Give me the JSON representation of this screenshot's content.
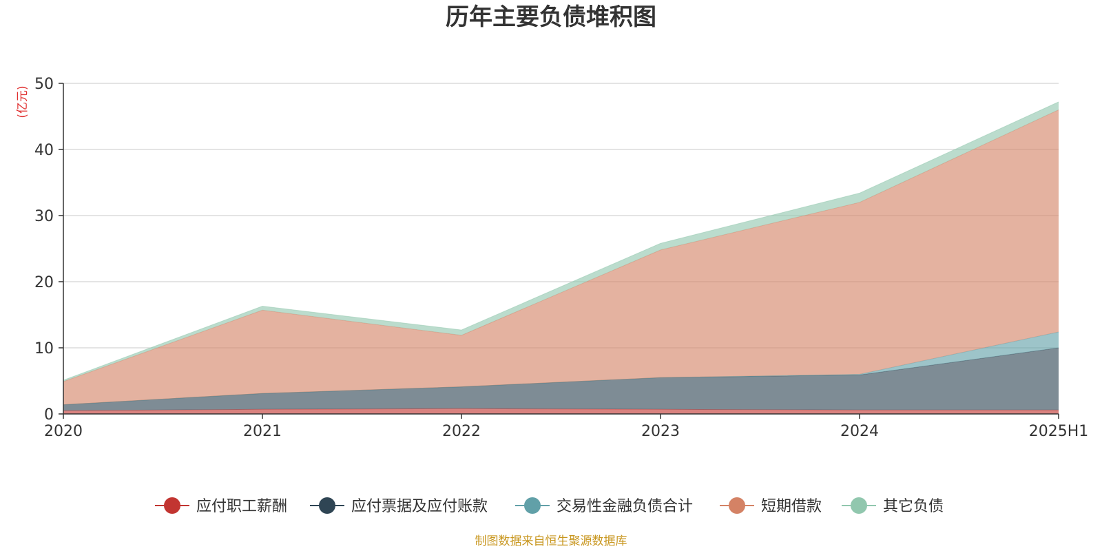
{
  "chart_data": {
    "type": "area",
    "stacked": true,
    "title": "历年主要负债堆积图",
    "unit_label": "(亿元)",
    "categories": [
      "2020",
      "2021",
      "2022",
      "2023",
      "2024",
      "2025H1"
    ],
    "ylim": [
      0,
      50
    ],
    "yticks": [
      0,
      10,
      20,
      30,
      40,
      50
    ],
    "grid": true,
    "legend_position": "bottom",
    "series": [
      {
        "name": "应付职工薪酬",
        "color": "#c23531",
        "values": [
          0.5,
          0.7,
          0.8,
          0.7,
          0.6,
          0.6
        ]
      },
      {
        "name": "应付票据及应付账款",
        "color": "#2f4554",
        "values": [
          0.9,
          2.4,
          3.3,
          4.8,
          5.3,
          9.4
        ]
      },
      {
        "name": "交易性金融负债合计",
        "color": "#61a0a8",
        "values": [
          0,
          0,
          0,
          0,
          0.1,
          2.4
        ]
      },
      {
        "name": "短期借款",
        "color": "#d48265",
        "values": [
          3.5,
          12.6,
          7.8,
          19.3,
          26.0,
          33.6
        ]
      },
      {
        "name": "其它负债",
        "color": "#91c7ae",
        "values": [
          0.2,
          0.6,
          0.8,
          1.0,
          1.4,
          1.2
        ]
      }
    ],
    "source_note": "制图数据来自恒生聚源数据库"
  }
}
